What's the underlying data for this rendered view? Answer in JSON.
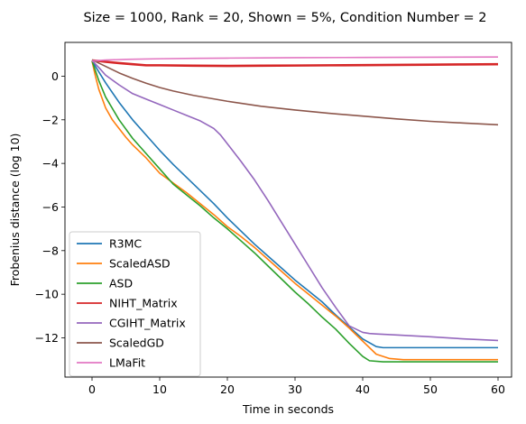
{
  "chart_data": {
    "type": "line",
    "title": "Size = 1000, Rank = 20, Shown = 5%, Condition Number = 2",
    "xlabel": "Time in seconds",
    "ylabel": "Frobenius distance (log 10)",
    "xlim": [
      -4,
      62
    ],
    "ylim": [
      -13.8,
      1.55
    ],
    "xticks": [
      0,
      10,
      20,
      30,
      40,
      50,
      60
    ],
    "yticks": [
      0,
      -2,
      -4,
      -6,
      -8,
      -10,
      -12
    ],
    "xtick_labels": [
      "0",
      "10",
      "20",
      "30",
      "40",
      "50",
      "60"
    ],
    "ytick_labels": [
      "0",
      "−2",
      "−4",
      "−6",
      "−8",
      "−10",
      "−12"
    ],
    "grid": false,
    "legend_position": "lower-left",
    "series": [
      {
        "name": "R3MC",
        "color": "#1f77b4",
        "x": [
          0,
          2,
          4,
          6,
          8,
          10,
          12,
          14,
          16,
          18,
          20,
          22,
          24,
          26,
          28,
          30,
          32,
          34,
          36,
          38,
          40,
          42,
          43,
          45,
          50,
          55,
          60
        ],
        "y": [
          0.7,
          -0.3,
          -1.2,
          -2.0,
          -2.7,
          -3.4,
          -4.05,
          -4.65,
          -5.25,
          -5.85,
          -6.5,
          -7.1,
          -7.7,
          -8.25,
          -8.8,
          -9.35,
          -9.85,
          -10.35,
          -10.95,
          -11.5,
          -12.05,
          -12.4,
          -12.45,
          -12.45,
          -12.45,
          -12.45,
          -12.45
        ]
      },
      {
        "name": "ScaledASD",
        "color": "#ff7f0e",
        "x": [
          0,
          0.5,
          1,
          2,
          3,
          4,
          5,
          6,
          8,
          10,
          12,
          14,
          16,
          18,
          20,
          22,
          24,
          26,
          28,
          30,
          32,
          34,
          36,
          38,
          40,
          42,
          44,
          46,
          50,
          55,
          60
        ],
        "y": [
          0.7,
          0.0,
          -0.6,
          -1.45,
          -2.0,
          -2.4,
          -2.8,
          -3.15,
          -3.75,
          -4.45,
          -4.9,
          -5.35,
          -5.85,
          -6.35,
          -6.9,
          -7.35,
          -7.85,
          -8.4,
          -8.95,
          -9.5,
          -10.0,
          -10.5,
          -11.0,
          -11.55,
          -12.15,
          -12.75,
          -12.95,
          -13.0,
          -13.0,
          -13.0,
          -13.0
        ]
      },
      {
        "name": "ASD",
        "color": "#2ca02c",
        "x": [
          0,
          1,
          2,
          4,
          6,
          8,
          10,
          12,
          14,
          16,
          18,
          20,
          22,
          24,
          26,
          28,
          30,
          32,
          34,
          36,
          38,
          40,
          41,
          43,
          50,
          55,
          60
        ],
        "y": [
          0.7,
          -0.2,
          -0.95,
          -2.0,
          -2.85,
          -3.55,
          -4.25,
          -4.95,
          -5.45,
          -5.95,
          -6.5,
          -7.0,
          -7.55,
          -8.1,
          -8.7,
          -9.3,
          -9.9,
          -10.45,
          -11.05,
          -11.6,
          -12.25,
          -12.85,
          -13.05,
          -13.1,
          -13.1,
          -13.1,
          -13.1
        ]
      },
      {
        "name": "NIHT_Matrix",
        "color": "#d62728",
        "x": [
          0,
          1,
          2,
          4,
          6,
          8,
          10,
          15,
          20,
          25,
          30,
          35,
          40,
          45,
          50,
          55,
          60
        ],
        "y": [
          0.72,
          0.7,
          0.66,
          0.6,
          0.55,
          0.5,
          0.5,
          0.48,
          0.47,
          0.48,
          0.49,
          0.5,
          0.51,
          0.52,
          0.53,
          0.54,
          0.55
        ]
      },
      {
        "name": "CGIHT_Matrix",
        "color": "#9467bd",
        "x": [
          0,
          1,
          2,
          4,
          6,
          8,
          10,
          12,
          14,
          16,
          18,
          19,
          20,
          22,
          24,
          26,
          28,
          30,
          32,
          34,
          36,
          38,
          40,
          41,
          42,
          45,
          50,
          55,
          60
        ],
        "y": [
          0.72,
          0.4,
          0.05,
          -0.4,
          -0.8,
          -1.05,
          -1.3,
          -1.55,
          -1.8,
          -2.05,
          -2.4,
          -2.7,
          -3.1,
          -3.9,
          -4.75,
          -5.7,
          -6.7,
          -7.7,
          -8.7,
          -9.7,
          -10.6,
          -11.45,
          -11.75,
          -11.8,
          -11.82,
          -11.87,
          -11.95,
          -12.05,
          -12.12
        ]
      },
      {
        "name": "ScaledGD",
        "color": "#8c564b",
        "x": [
          0,
          1,
          2,
          4,
          6,
          8,
          10,
          12,
          15,
          20,
          25,
          30,
          35,
          40,
          45,
          50,
          55,
          60
        ],
        "y": [
          0.75,
          0.6,
          0.45,
          0.15,
          -0.1,
          -0.32,
          -0.52,
          -0.68,
          -0.88,
          -1.15,
          -1.38,
          -1.55,
          -1.7,
          -1.83,
          -1.96,
          -2.07,
          -2.15,
          -2.23
        ]
      },
      {
        "name": "LMaFit",
        "color": "#e377c2",
        "x": [
          0,
          2,
          5,
          10,
          15,
          20,
          25,
          30,
          40,
          50,
          60
        ],
        "y": [
          0.7,
          0.74,
          0.77,
          0.8,
          0.82,
          0.83,
          0.84,
          0.85,
          0.86,
          0.87,
          0.88
        ]
      }
    ]
  }
}
